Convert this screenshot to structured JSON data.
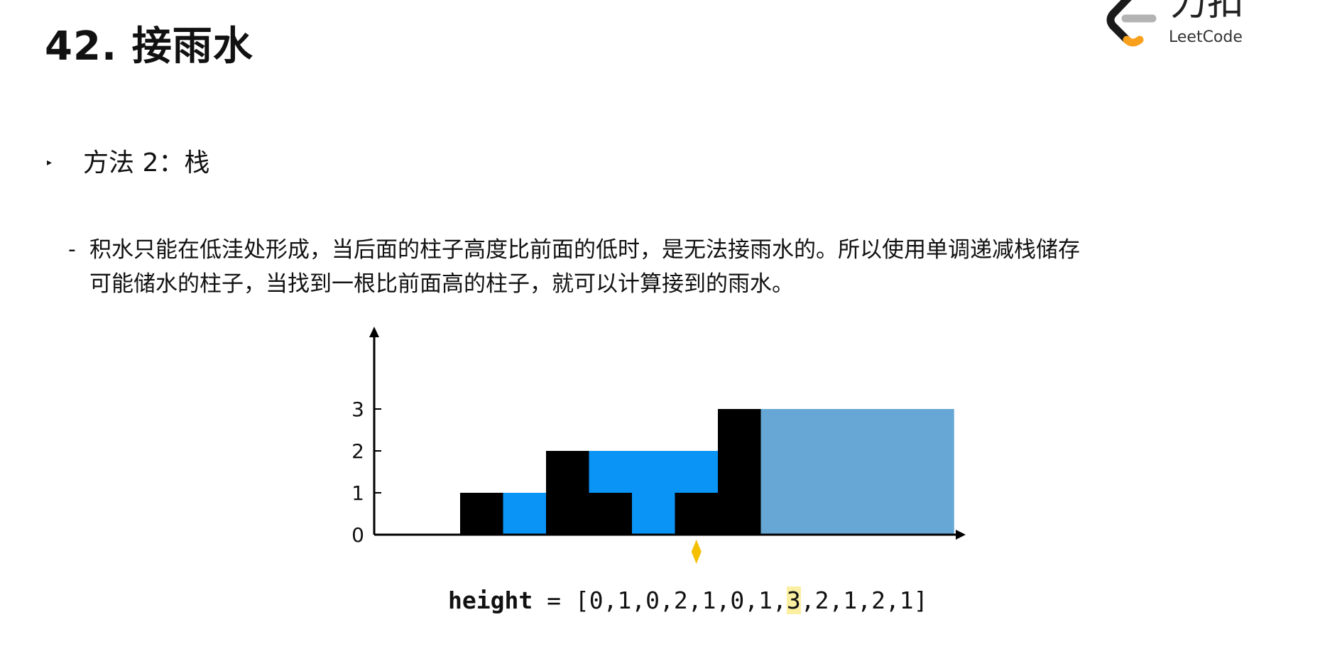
{
  "title": "42. 接雨水",
  "logo": {
    "cn": "力扣",
    "en": "LeetCode",
    "colors": {
      "dark": "#1a1a1a",
      "orange": "#f89f1b",
      "gray": "#b3b3b3"
    }
  },
  "method": "方法 2：栈",
  "description": {
    "dash": "-",
    "line1": "积水只能在低洼处形成，当后面的柱子高度比前面的低时，是无法接雨水的。所以使用单调递减栈储存",
    "line2": "可能储水的柱子，当找到一根比前面高的柱子，就可以计算接到的雨水。"
  },
  "chart_data": {
    "type": "bar",
    "x": [
      0,
      1,
      2,
      3,
      4,
      5,
      6,
      7
    ],
    "bars": [
      0,
      1,
      0,
      2,
      1,
      0,
      1,
      3
    ],
    "water": [
      0,
      0,
      1,
      0,
      1,
      2,
      1,
      0
    ],
    "stack_region": {
      "x_start": 8,
      "x_end": 13.5,
      "height": 3
    },
    "pointer_index": 7,
    "ylim": [
      0,
      4
    ],
    "yticks": [
      "0",
      "1",
      "2",
      "3"
    ],
    "colors": {
      "bar": "#000000",
      "water": "#0a94f6",
      "stack_region": "#66a7d5",
      "pointer": "#f5c000"
    }
  },
  "formula": {
    "label": "height",
    "op": " = ",
    "open": "[",
    "before": "0,1,0,2,1,0,1,",
    "highlight": "3",
    "after": ",2,1,2,1",
    "close": "]"
  }
}
